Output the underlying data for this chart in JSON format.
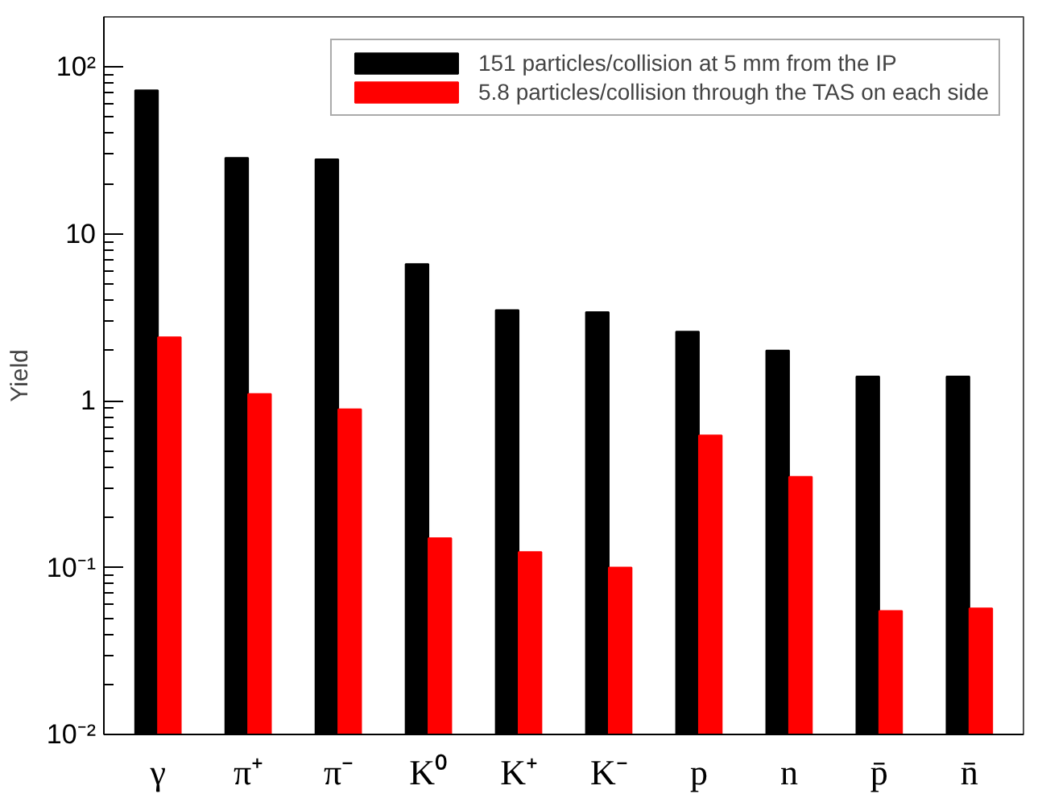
{
  "chart_data": {
    "type": "bar",
    "ylabel": "Yield",
    "categories": [
      "γ",
      "π⁺",
      "π⁻",
      "K⁰",
      "K⁺",
      "K⁻",
      "p",
      "n",
      "p̄",
      "n̄"
    ],
    "series": [
      {
        "name": "151 particles/collision at 5 mm from the IP",
        "color": "#000000",
        "values": [
          72.6,
          28.6,
          28,
          6.6,
          3.5,
          3.4,
          2.6,
          2.0,
          1.4,
          1.4
        ]
      },
      {
        "name": "5.8 particles/collision through the TAS on each side",
        "color": "#ff0000",
        "values": [
          2.4,
          1.1,
          0.89,
          0.15,
          0.124,
          0.1,
          0.62,
          0.35,
          0.055,
          0.057
        ]
      }
    ],
    "log": "y",
    "ylim": [
      0.01,
      200
    ],
    "yticks": [
      {
        "value": 0.01,
        "label": "10⁻²"
      },
      {
        "value": 0.1,
        "label": "10⁻¹"
      },
      1,
      10,
      {
        "value": 100,
        "label": "10²"
      }
    ],
    "grid": false,
    "legend": "top right"
  }
}
